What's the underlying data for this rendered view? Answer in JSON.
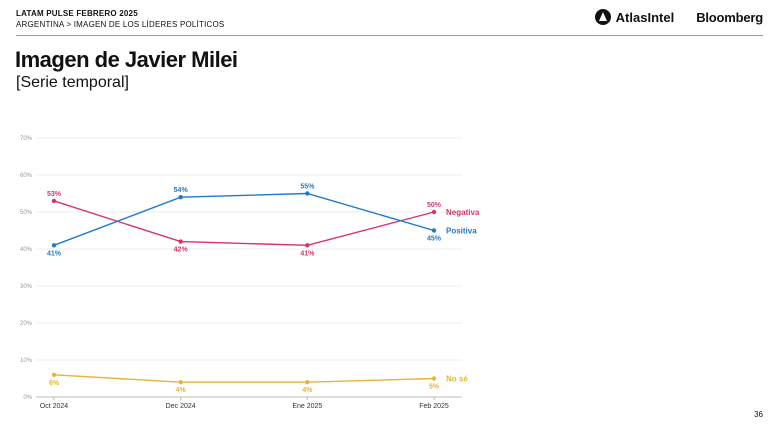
{
  "header": {
    "survey": "LATAM PULSE  FEBRERO 2025",
    "breadcrumb": "ARGENTINA > IMAGEN DE LOS LÍDERES POLÍTICOS",
    "logo_atlas": "AtlasIntel",
    "logo_bloomberg": "Bloomberg"
  },
  "title": "Imagen de Javier Milei",
  "subtitle": "[Serie temporal]",
  "page_number": "36",
  "chart_data": {
    "type": "line",
    "categories": [
      "Oct 2024",
      "Dec 2024",
      "Ene 2025",
      "Feb 2025"
    ],
    "yticks": [
      "0%",
      "10%",
      "20%",
      "30%",
      "40%",
      "50%",
      "60%",
      "70%"
    ],
    "ylim": [
      0,
      70
    ],
    "grid": true,
    "series": [
      {
        "name": "Negativa",
        "color": "#d6336c",
        "values": [
          53,
          42,
          41,
          50
        ],
        "labels": [
          "53%",
          "42%",
          "41%",
          "50%"
        ]
      },
      {
        "name": "Positiva",
        "color": "#1f7ac9",
        "values": [
          41,
          54,
          55,
          45
        ],
        "labels": [
          "41%",
          "54%",
          "55%",
          "45%"
        ]
      },
      {
        "name": "No sé",
        "color": "#e5b53a",
        "values": [
          6,
          4,
          4,
          5
        ],
        "labels": [
          "6%",
          "4%",
          "4%",
          "5%"
        ]
      }
    ]
  }
}
